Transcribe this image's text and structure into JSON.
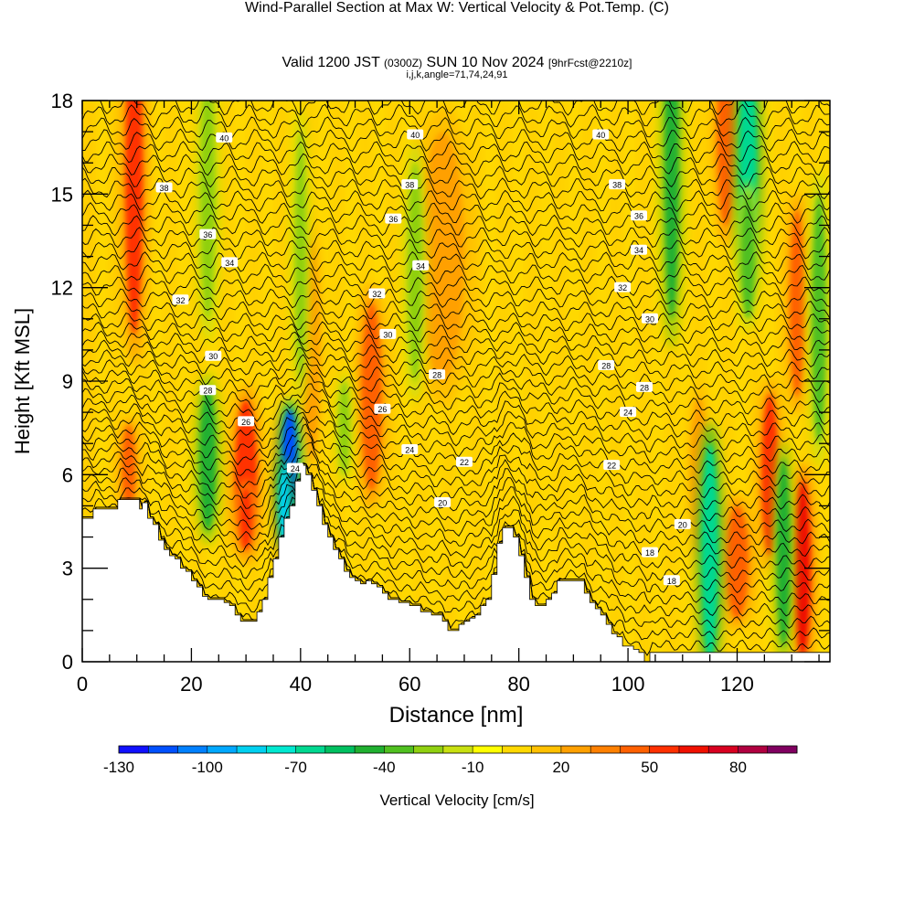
{
  "header": {
    "title": "Wind-Parallel Section at Max W: Vertical Velocity & Pot.Temp.",
    "copyright_mark": "(C)",
    "subtitle_prefix": "Valid 1200 JST",
    "subtitle_utc": "(0300Z)",
    "subtitle_date": "SUN 10 Nov 2024",
    "subtitle_forecast": "[9hrFcst@2210z]",
    "params": "i,j,k,angle=71,74,24,91"
  },
  "chart_data": {
    "type": "heatmap",
    "title": "Wind-Parallel Section at Max W: Vertical Velocity & Pot.Temp.",
    "xlabel": "Distance [nm]",
    "ylabel": "Height [Kft MSL]",
    "xlim": [
      0,
      137
    ],
    "ylim": [
      0,
      18
    ],
    "x_ticks": [
      0,
      20,
      40,
      60,
      80,
      100,
      120
    ],
    "y_ticks": [
      0,
      3,
      6,
      9,
      12,
      15,
      18
    ],
    "grid": false,
    "colorbar": {
      "label": "Vertical Velocity [cm/s]",
      "tick_labels": [
        "-130",
        "-100",
        "-70",
        "-40",
        "-10",
        "20",
        "50",
        "80"
      ],
      "tick_values": [
        -130,
        -100,
        -70,
        -40,
        -10,
        20,
        50,
        80
      ],
      "min": -130,
      "max": 100,
      "step": 10,
      "colors": [
        "#1010ff",
        "#0050ff",
        "#0080ff",
        "#00a8ff",
        "#00d0f0",
        "#00e8d0",
        "#00d890",
        "#00c060",
        "#20b030",
        "#50c020",
        "#90d010",
        "#c8e010",
        "#ffff00",
        "#ffd800",
        "#ffc000",
        "#ffa000",
        "#ff8000",
        "#ff6000",
        "#ff3000",
        "#f01000",
        "#d80020",
        "#b00040",
        "#800060"
      ]
    },
    "terrain": [
      [
        0,
        4.6
      ],
      [
        1.5,
        4.6
      ],
      [
        2,
        4.9
      ],
      [
        6,
        4.9
      ],
      [
        6.5,
        5.2
      ],
      [
        10,
        5.2
      ],
      [
        10.5,
        4.9
      ],
      [
        11,
        5.1
      ],
      [
        12,
        4.6
      ],
      [
        13,
        4.4
      ],
      [
        14,
        3.9
      ],
      [
        15,
        3.6
      ],
      [
        16,
        3.4
      ],
      [
        17,
        3.3
      ],
      [
        18,
        3.0
      ],
      [
        19,
        2.9
      ],
      [
        20,
        2.6
      ],
      [
        21,
        2.4
      ],
      [
        22,
        2.1
      ],
      [
        23,
        2.0
      ],
      [
        24,
        2.0
      ],
      [
        25,
        2.0
      ],
      [
        26,
        1.9
      ],
      [
        27,
        1.8
      ],
      [
        28,
        1.5
      ],
      [
        29,
        1.3
      ],
      [
        30,
        1.3
      ],
      [
        31,
        1.3
      ],
      [
        32,
        1.6
      ],
      [
        33,
        2.0
      ],
      [
        34,
        2.7
      ],
      [
        35,
        3.3
      ],
      [
        36,
        4.0
      ],
      [
        37,
        4.6
      ],
      [
        38,
        5.0
      ],
      [
        39,
        5.8
      ],
      [
        40,
        6.3
      ],
      [
        41,
        6.0
      ],
      [
        42,
        5.5
      ],
      [
        43,
        5.0
      ],
      [
        44,
        4.4
      ],
      [
        45,
        4.0
      ],
      [
        46,
        3.6
      ],
      [
        47,
        3.3
      ],
      [
        48,
        2.9
      ],
      [
        49,
        2.7
      ],
      [
        50,
        2.6
      ],
      [
        51,
        2.5
      ],
      [
        52,
        2.6
      ],
      [
        53,
        2.5
      ],
      [
        54,
        2.4
      ],
      [
        55,
        2.2
      ],
      [
        56,
        2.0
      ],
      [
        57,
        2.0
      ],
      [
        58,
        1.9
      ],
      [
        60,
        1.8
      ],
      [
        62,
        1.6
      ],
      [
        64,
        1.5
      ],
      [
        66,
        1.3
      ],
      [
        67,
        1.0
      ],
      [
        68,
        1.0
      ],
      [
        69,
        1.2
      ],
      [
        70,
        1.3
      ],
      [
        71,
        1.4
      ],
      [
        72,
        1.5
      ],
      [
        73,
        1.8
      ],
      [
        74,
        2.0
      ],
      [
        75,
        2.8
      ],
      [
        76,
        3.8
      ],
      [
        77,
        4.3
      ],
      [
        78,
        4.3
      ],
      [
        79,
        4.0
      ],
      [
        80,
        3.4
      ],
      [
        81,
        2.7
      ],
      [
        82,
        2.0
      ],
      [
        83,
        1.8
      ],
      [
        84,
        1.8
      ],
      [
        85,
        2.0
      ],
      [
        86,
        2.2
      ],
      [
        87,
        2.6
      ],
      [
        88,
        2.6
      ],
      [
        89,
        2.6
      ],
      [
        90,
        2.6
      ],
      [
        91,
        2.6
      ],
      [
        92,
        2.2
      ],
      [
        93,
        1.9
      ],
      [
        94,
        1.7
      ],
      [
        95,
        1.5
      ],
      [
        96,
        1.2
      ],
      [
        97,
        0.9
      ],
      [
        98,
        0.8
      ],
      [
        99,
        0.5
      ],
      [
        100,
        0.5
      ],
      [
        101,
        0.4
      ],
      [
        102,
        0.3
      ],
      [
        103,
        0.0
      ],
      [
        104,
        0.3
      ],
      [
        137,
        0.3
      ]
    ],
    "updrafts": [
      {
        "x": 9.5,
        "y": 15.5,
        "w": 1.6,
        "h": 5.0,
        "v": 50
      },
      {
        "x": 8.5,
        "y": 6.2,
        "w": 1.2,
        "h": 1.4,
        "v": 45
      },
      {
        "x": 30.0,
        "y": 6.0,
        "w": 2.0,
        "h": 2.4,
        "v": 50
      },
      {
        "x": 30.0,
        "y": 4.6,
        "w": 1.2,
        "h": 1.0,
        "v": 55
      },
      {
        "x": 36.5,
        "y": 5.6,
        "w": 1.5,
        "h": 2.2,
        "v": 25
      },
      {
        "x": 53.0,
        "y": 8.5,
        "w": 1.8,
        "h": 3.0,
        "v": 45
      },
      {
        "x": 42.0,
        "y": 10.0,
        "w": 1.5,
        "h": 3.5,
        "v": 20
      },
      {
        "x": 126.0,
        "y": 6.0,
        "w": 1.5,
        "h": 2.6,
        "v": 55
      },
      {
        "x": 132.0,
        "y": 3.0,
        "w": 1.4,
        "h": 2.8,
        "v": 65
      },
      {
        "x": 120.0,
        "y": 3.2,
        "w": 2.0,
        "h": 1.8,
        "v": 45
      },
      {
        "x": 131.0,
        "y": 11.5,
        "w": 1.3,
        "h": 3.0,
        "v": 40
      },
      {
        "x": 118.0,
        "y": 17.0,
        "w": 1.6,
        "h": 3.0,
        "v": 45
      },
      {
        "x": 113.0,
        "y": 6.0,
        "w": 1.5,
        "h": 2.5,
        "v": 25
      },
      {
        "x": 66.0,
        "y": 13.0,
        "w": 4.0,
        "h": 4.0,
        "v": 20
      }
    ],
    "downdrafts": [
      {
        "x": 38.0,
        "y": 6.5,
        "w": 1.3,
        "h": 1.6,
        "v": -120
      },
      {
        "x": 37.0,
        "y": 5.0,
        "w": 1.0,
        "h": 1.3,
        "v": -90
      },
      {
        "x": 23.0,
        "y": 6.5,
        "w": 1.5,
        "h": 2.3,
        "v": -50
      },
      {
        "x": 23.0,
        "y": 15.0,
        "w": 1.3,
        "h": 4.0,
        "v": -30
      },
      {
        "x": 40.0,
        "y": 13.0,
        "w": 1.0,
        "h": 4.0,
        "v": -25
      },
      {
        "x": 115.0,
        "y": 3.5,
        "w": 1.5,
        "h": 3.5,
        "v": -70
      },
      {
        "x": 122.0,
        "y": 16.0,
        "w": 1.6,
        "h": 3.5,
        "v": -65
      },
      {
        "x": 122.0,
        "y": 13.0,
        "w": 1.3,
        "h": 2.0,
        "v": -40
      },
      {
        "x": 108.0,
        "y": 16.0,
        "w": 1.3,
        "h": 5.0,
        "v": -45
      },
      {
        "x": 135.0,
        "y": 11.0,
        "w": 1.3,
        "h": 4.0,
        "v": -40
      },
      {
        "x": 128.5,
        "y": 3.5,
        "w": 1.2,
        "h": 3.0,
        "v": -50
      },
      {
        "x": 61.0,
        "y": 12.5,
        "w": 1.3,
        "h": 3.5,
        "v": -25
      },
      {
        "x": 48.0,
        "y": 7.5,
        "w": 1.0,
        "h": 1.5,
        "v": -25
      }
    ],
    "theta_labels": [
      {
        "x": 26,
        "y": 16.8,
        "text": "40"
      },
      {
        "x": 61,
        "y": 16.9,
        "text": "40"
      },
      {
        "x": 95,
        "y": 16.9,
        "text": "40"
      },
      {
        "x": 15,
        "y": 15.2,
        "text": "38"
      },
      {
        "x": 60,
        "y": 15.3,
        "text": "38"
      },
      {
        "x": 98,
        "y": 15.3,
        "text": "38"
      },
      {
        "x": 23,
        "y": 13.7,
        "text": "36"
      },
      {
        "x": 57,
        "y": 14.2,
        "text": "36"
      },
      {
        "x": 102,
        "y": 14.3,
        "text": "36"
      },
      {
        "x": 27,
        "y": 12.8,
        "text": "34"
      },
      {
        "x": 62,
        "y": 12.7,
        "text": "34"
      },
      {
        "x": 102,
        "y": 13.2,
        "text": "34"
      },
      {
        "x": 18,
        "y": 11.6,
        "text": "32"
      },
      {
        "x": 54,
        "y": 11.8,
        "text": "32"
      },
      {
        "x": 99,
        "y": 12.0,
        "text": "32"
      },
      {
        "x": 24,
        "y": 9.8,
        "text": "30"
      },
      {
        "x": 56,
        "y": 10.5,
        "text": "30"
      },
      {
        "x": 104,
        "y": 11.0,
        "text": "30"
      },
      {
        "x": 23,
        "y": 8.7,
        "text": "28"
      },
      {
        "x": 65,
        "y": 9.2,
        "text": "28"
      },
      {
        "x": 96,
        "y": 9.5,
        "text": "28"
      },
      {
        "x": 103,
        "y": 8.8,
        "text": "28"
      },
      {
        "x": 30,
        "y": 7.7,
        "text": "26"
      },
      {
        "x": 55,
        "y": 8.1,
        "text": "26"
      },
      {
        "x": 60,
        "y": 6.8,
        "text": "24"
      },
      {
        "x": 100,
        "y": 8.0,
        "text": "24"
      },
      {
        "x": 39,
        "y": 6.2,
        "text": "24"
      },
      {
        "x": 70,
        "y": 6.4,
        "text": "22"
      },
      {
        "x": 97,
        "y": 6.3,
        "text": "22"
      },
      {
        "x": 66,
        "y": 5.1,
        "text": "20"
      },
      {
        "x": 110,
        "y": 4.4,
        "text": "20"
      },
      {
        "x": 104,
        "y": 3.5,
        "text": "18"
      },
      {
        "x": 108,
        "y": 2.6,
        "text": "18"
      }
    ]
  }
}
